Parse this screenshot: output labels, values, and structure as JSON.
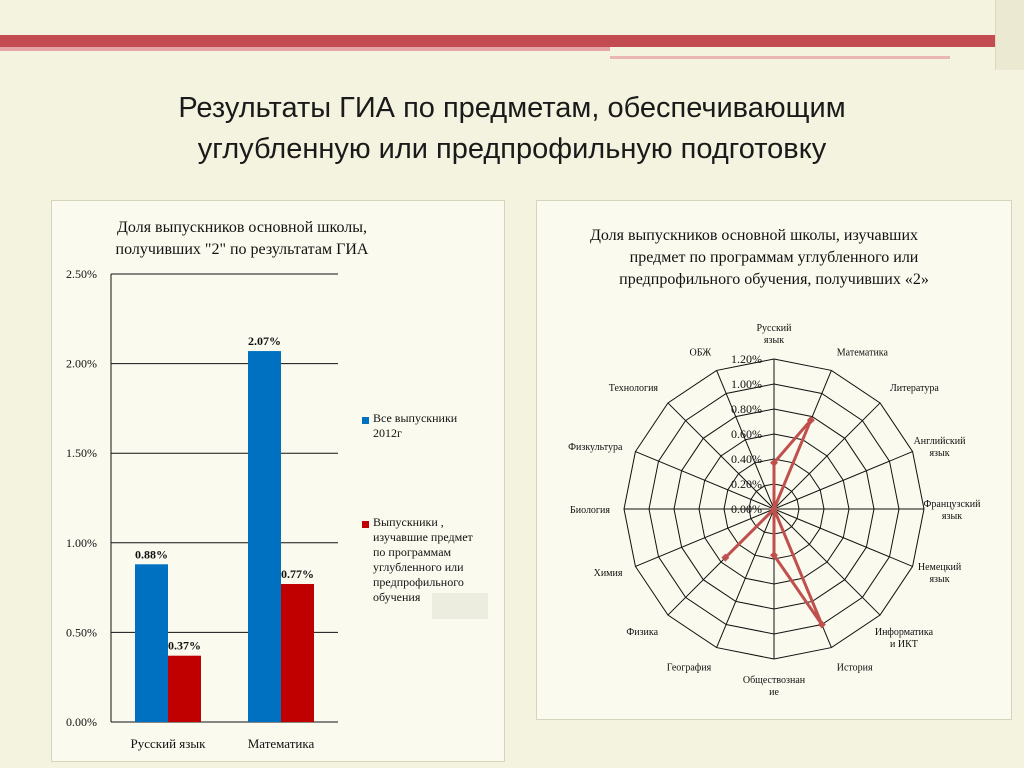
{
  "title": {
    "line1": "Результаты ГИА по предметам, обеспечивающим",
    "line2": "углубленную или предпрофильную подготовку"
  },
  "colors": {
    "background": "#f4f3df",
    "header_stripe_dark": "#c24c52",
    "header_stripe_light": "#e3a5a5",
    "series_blue": "#0070c0",
    "series_red": "#c00000",
    "radar_line": "#c0504d"
  },
  "chart_data": [
    {
      "type": "bar",
      "title_line1": "Доля выпускников основной школы,",
      "title_line2": "получивших \"2\" по результатам ГИА",
      "categories": [
        "Русский язык",
        "Математика"
      ],
      "series": [
        {
          "name_line1": "Все выпускники",
          "name_line2": "2012г",
          "values": [
            0.88,
            2.07
          ],
          "labels": [
            "0.88%",
            "2.07%"
          ]
        },
        {
          "name_lines": [
            "Выпускники ,",
            "изучавшие предмет",
            "по программам",
            "углубленного или",
            "предпрофильного",
            "обучения"
          ],
          "values": [
            0.37,
            0.77
          ],
          "labels": [
            "0.37%",
            "0.77%"
          ]
        }
      ],
      "ylim": [
        0,
        2.5
      ],
      "yticks": [
        "0.00%",
        "0.50%",
        "1.00%",
        "1.50%",
        "2.00%",
        "2.50%"
      ],
      "grid": true,
      "legend_position": "right"
    },
    {
      "type": "radar",
      "title_line1": "Доля выпускников основной школы, изучавших",
      "title_line2": "предмет по программам углубленного или",
      "title_line3": "предпрофильного обучения, получивших «2»",
      "axes": [
        [
          "Русский",
          "язык"
        ],
        [
          "Математика"
        ],
        [
          "Литература"
        ],
        [
          "Английский",
          "язык"
        ],
        [
          "Французский",
          "язык"
        ],
        [
          "Немецкий",
          "язык"
        ],
        [
          "Информатика",
          "и ИКТ"
        ],
        [
          "История"
        ],
        [
          "Обществознан",
          "ие"
        ],
        [
          "География"
        ],
        [
          "Физика"
        ],
        [
          "Химия"
        ],
        [
          "Биология"
        ],
        [
          "Физкультура"
        ],
        [
          "Технология"
        ],
        [
          "ОБЖ"
        ]
      ],
      "values": [
        0.37,
        0.77,
        0,
        0,
        0,
        0,
        0,
        1.0,
        0.37,
        0,
        0.55,
        0,
        0,
        0,
        0,
        0
      ],
      "rlim": [
        0,
        1.2
      ],
      "rticks": [
        "0.00%",
        "0.20%",
        "0.40%",
        "0.60%",
        "0.80%",
        "1.00%",
        "1.20%"
      ],
      "grid": true
    }
  ]
}
